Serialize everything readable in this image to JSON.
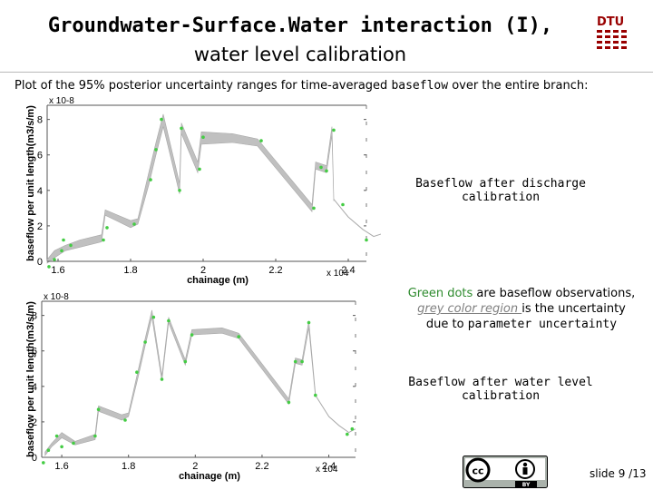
{
  "title": {
    "line1": "Groundwater-Surface.Water interaction (I),",
    "line2": "water level calibration"
  },
  "logo_text": "DTU",
  "description": {
    "prefix": "Plot of the 95% posterior uncertainty ranges for time-averaged ",
    "keyword": "baseflow",
    "suffix": " over the entire branch:"
  },
  "captions": {
    "top": "Baseflow after discharge calibration",
    "bottom": "Baseflow after water level calibration"
  },
  "note": {
    "green_part": "Green dots",
    "part1": " are baseflow observations,",
    "grey_part": "grey color region ",
    "part2": "is the uncertainty",
    "part3": "due to ",
    "param": "parameter uncertainty"
  },
  "footer": {
    "slide": "slide 9 /13",
    "license": "CC BY"
  },
  "colors": {
    "band": "#c0c0c0",
    "obs": "#44cc44",
    "axis": "#444444"
  },
  "chart_data": [
    {
      "type": "area",
      "title": "",
      "xlabel": "chainage (m)",
      "ylabel": "baseflow per unit length(m3/s/m)",
      "x_scale_label": "x 10^4",
      "y_scale_label": "x 10^-8",
      "xlim": [
        1.57,
        2.45
      ],
      "ylim": [
        0,
        8.8
      ],
      "xticks": [
        1.6,
        1.8,
        2,
        2.2,
        2.4
      ],
      "xtick_labels": [
        "1.6",
        "1.8",
        "2",
        "2.2",
        "2.4"
      ],
      "yticks": [
        0,
        2,
        4,
        6,
        8
      ],
      "ytick_labels": [
        "0",
        "2",
        "4",
        "6",
        "8"
      ],
      "grid": false,
      "series": [
        {
          "values": [
            [
              1.57,
              -0.1,
              0.1
            ],
            [
              1.59,
              0.2,
              0.6
            ],
            [
              1.62,
              0.6,
              0.9
            ],
            [
              1.66,
              0.8,
              1.2
            ],
            [
              1.72,
              1.1,
              1.5
            ],
            [
              1.73,
              2.6,
              2.9
            ],
            [
              1.8,
              1.9,
              2.3
            ],
            [
              1.82,
              2.1,
              2.4
            ],
            [
              1.85,
              4.3,
              5.0
            ],
            [
              1.87,
              6.0,
              6.7
            ],
            [
              1.89,
              7.6,
              8.3
            ],
            [
              1.935,
              3.8,
              4.4
            ],
            [
              1.94,
              7.2,
              7.8
            ],
            [
              1.985,
              5.0,
              5.6
            ],
            [
              1.995,
              6.6,
              7.3
            ],
            [
              2.08,
              6.7,
              7.2
            ],
            [
              2.15,
              6.5,
              6.9
            ],
            [
              2.3,
              2.8,
              3.2
            ],
            [
              2.31,
              5.2,
              5.6
            ],
            [
              2.34,
              5.0,
              5.4
            ],
            [
              2.355,
              7.1,
              7.6
            ],
            [
              2.36,
              3.4,
              3.6
            ]
          ]
        }
      ],
      "observations": {
        "name": "",
        "points": [
          [
            1.575,
            -0.3
          ],
          [
            1.59,
            0.1
          ],
          [
            1.61,
            0.6
          ],
          [
            1.615,
            1.2
          ],
          [
            1.635,
            0.9
          ],
          [
            1.725,
            1.2
          ],
          [
            1.735,
            1.9
          ],
          [
            1.81,
            2.1
          ],
          [
            1.855,
            4.6
          ],
          [
            1.87,
            6.3
          ],
          [
            1.885,
            8.0
          ],
          [
            1.935,
            4.0
          ],
          [
            1.94,
            7.5
          ],
          [
            1.99,
            5.2
          ],
          [
            2.0,
            7.0
          ],
          [
            2.16,
            6.8
          ],
          [
            2.305,
            3.0
          ],
          [
            2.325,
            5.3
          ],
          [
            2.34,
            5.1
          ],
          [
            2.36,
            7.4
          ],
          [
            2.385,
            3.2
          ],
          [
            2.45,
            1.2
          ]
        ]
      },
      "tail": [
        [
          2.36,
          3.5
        ],
        [
          2.4,
          2.5
        ],
        [
          2.44,
          1.8
        ],
        [
          2.47,
          1.4
        ],
        [
          2.5,
          1.6
        ]
      ]
    },
    {
      "type": "area",
      "title": "",
      "xlabel": "chainage (m)",
      "ylabel": "baseflow per unit length(m3/s/m)",
      "x_scale_label": "x 10^4",
      "y_scale_label": "x 10^-8",
      "xlim": [
        1.54,
        2.48
      ],
      "ylim": [
        0,
        8.8
      ],
      "xticks": [
        1.6,
        1.8,
        2,
        2.2,
        2.4
      ],
      "xtick_labels": [
        "1.6",
        "1.8",
        "2",
        "2.2",
        "2.4"
      ],
      "yticks": [
        0,
        2,
        4,
        6,
        8
      ],
      "ytick_labels": [
        "0",
        "2",
        "4",
        "6",
        "8"
      ],
      "grid": false,
      "series": [
        {
          "values": [
            [
              1.55,
              0.1,
              0.3
            ],
            [
              1.57,
              0.6,
              0.8
            ],
            [
              1.6,
              1.1,
              1.4
            ],
            [
              1.64,
              0.7,
              0.9
            ],
            [
              1.7,
              1.0,
              1.3
            ],
            [
              1.71,
              2.6,
              2.9
            ],
            [
              1.78,
              2.1,
              2.4
            ],
            [
              1.8,
              2.3,
              2.5
            ],
            [
              1.83,
              4.6,
              5.0
            ],
            [
              1.85,
              6.3,
              6.7
            ],
            [
              1.87,
              7.9,
              8.3
            ],
            [
              1.9,
              4.3,
              4.6
            ],
            [
              1.92,
              7.6,
              7.9
            ],
            [
              1.97,
              5.2,
              5.5
            ],
            [
              1.99,
              6.9,
              7.2
            ],
            [
              2.08,
              7.0,
              7.3
            ],
            [
              2.13,
              6.7,
              7.0
            ],
            [
              2.28,
              3.0,
              3.3
            ],
            [
              2.3,
              5.3,
              5.6
            ],
            [
              2.32,
              5.2,
              5.5
            ],
            [
              2.34,
              7.3,
              7.7
            ],
            [
              2.36,
              3.4,
              3.6
            ]
          ]
        }
      ],
      "observations": {
        "name": "",
        "points": [
          [
            1.545,
            -0.3
          ],
          [
            1.56,
            0.4
          ],
          [
            1.585,
            1.2
          ],
          [
            1.6,
            0.6
          ],
          [
            1.635,
            0.8
          ],
          [
            1.7,
            1.2
          ],
          [
            1.71,
            2.7
          ],
          [
            1.79,
            2.1
          ],
          [
            1.825,
            4.8
          ],
          [
            1.85,
            6.5
          ],
          [
            1.875,
            7.9
          ],
          [
            1.9,
            4.4
          ],
          [
            1.92,
            7.7
          ],
          [
            1.97,
            5.4
          ],
          [
            1.99,
            6.9
          ],
          [
            2.13,
            6.8
          ],
          [
            2.28,
            3.1
          ],
          [
            2.3,
            5.4
          ],
          [
            2.32,
            5.4
          ],
          [
            2.34,
            7.6
          ],
          [
            2.36,
            3.5
          ],
          [
            2.455,
            1.3
          ],
          [
            2.47,
            1.6
          ]
        ]
      },
      "tail": [
        [
          2.36,
          3.5
        ],
        [
          2.4,
          2.3
        ],
        [
          2.43,
          1.8
        ],
        [
          2.46,
          1.4
        ],
        [
          2.48,
          1.6
        ]
      ]
    }
  ]
}
